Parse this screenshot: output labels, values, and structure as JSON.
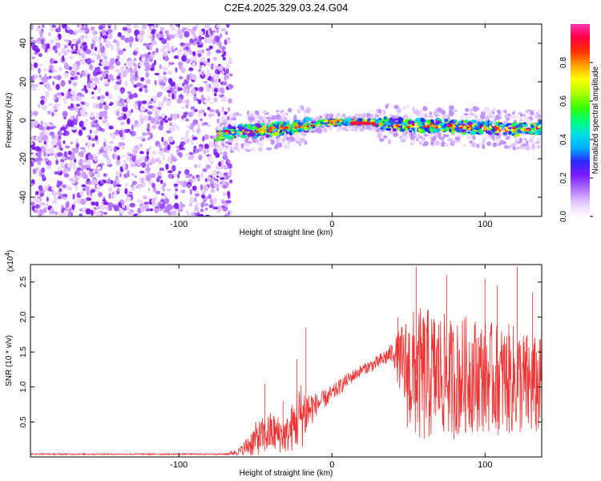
{
  "chart_data": [
    {
      "type": "heatmap",
      "title": "C2E4.2025.329.03.24.G04",
      "xlabel": "Height of straight line (km)",
      "ylabel": "Frequency (Hz)",
      "xlim": [
        -197,
        137
      ],
      "ylim": [
        -50,
        50
      ],
      "x_ticks": [
        -100,
        0,
        100
      ],
      "x_tick_labels": [
        "-100",
        "0",
        "100"
      ],
      "y_ticks": [
        -40,
        -20,
        0,
        20,
        40
      ],
      "y_tick_labels": [
        "-40",
        "-20",
        "0",
        "20",
        "40"
      ],
      "noise_region_x": [
        -197,
        -66
      ],
      "signal_ridge": {
        "x": [
          -75,
          -60,
          -40,
          -20,
          0,
          20,
          40,
          60,
          80,
          100,
          120,
          137
        ],
        "frequency": [
          -7,
          -6,
          -5,
          -3,
          -1,
          -1,
          -2,
          -3,
          -3,
          -4,
          -5,
          -4
        ]
      },
      "colorbar": {
        "label": "Normalized spectral amplitude",
        "range": [
          0.0,
          1.0
        ],
        "ticks": [
          0.0,
          0.2,
          0.4,
          0.6,
          0.8
        ],
        "tick_labels": [
          "0.0",
          "0.2",
          "0.4",
          "0.6",
          "0.8"
        ],
        "colors": [
          "#ffffff",
          "#e6c8ff",
          "#b070ff",
          "#7a1cff",
          "#2a2aff",
          "#00b0ff",
          "#00e0e0",
          "#00ff70",
          "#40ff00",
          "#b0ff00",
          "#ffff00",
          "#ffa000",
          "#ff3000",
          "#ff0040",
          "#ff30b0"
        ]
      }
    },
    {
      "type": "line",
      "xlabel": "Height of straight line (km)",
      "ylabel": "SNR (10 * v/v)",
      "y_multiplier": "(x10",
      "y_multiplier_exp": "4",
      "y_multiplier_close": ")",
      "xlim": [
        -197,
        137
      ],
      "ylim": [
        0.0,
        2.75
      ],
      "x_ticks": [
        -100,
        0,
        100
      ],
      "x_tick_labels": [
        "-100",
        "0",
        "100"
      ],
      "y_ticks": [
        0.5,
        1.0,
        1.5,
        2.0,
        2.5
      ],
      "y_tick_labels": [
        "0.5",
        "1.0",
        "1.5",
        "2.0",
        "2.5"
      ],
      "series": [
        {
          "name": "SNR",
          "color": "#ee3333",
          "envelope_x": [
            -197,
            -70,
            -60,
            -50,
            -40,
            -30,
            -20,
            -10,
            0,
            10,
            20,
            30,
            40,
            50,
            60,
            70,
            80,
            90,
            100,
            110,
            120,
            130,
            137
          ],
          "envelope_mean": [
            0.04,
            0.04,
            0.08,
            0.25,
            0.35,
            0.3,
            0.6,
            0.75,
            0.9,
            1.1,
            1.25,
            1.35,
            1.5,
            1.2,
            1.15,
            1.2,
            1.1,
            1.2,
            1.15,
            1.1,
            1.1,
            1.0,
            1.0
          ],
          "envelope_spread": [
            0.01,
            0.01,
            0.06,
            0.25,
            0.3,
            0.25,
            0.5,
            0.15,
            0.12,
            0.1,
            0.08,
            0.1,
            0.15,
            0.9,
            1.0,
            0.9,
            0.85,
            0.85,
            0.8,
            0.8,
            0.8,
            0.75,
            0.7
          ],
          "spikes": [
            {
              "x": -44,
              "y": 1.05
            },
            {
              "x": -32,
              "y": 0.8
            },
            {
              "x": -17,
              "y": 1.85
            },
            {
              "x": -23,
              "y": 1.4
            },
            {
              "x": 43,
              "y": 2.0
            },
            {
              "x": 55,
              "y": 2.72
            },
            {
              "x": 75,
              "y": 2.6
            },
            {
              "x": 100,
              "y": 2.55
            },
            {
              "x": 108,
              "y": 2.45
            },
            {
              "x": 121,
              "y": 2.72
            },
            {
              "x": 131,
              "y": 2.35
            }
          ]
        }
      ]
    }
  ]
}
